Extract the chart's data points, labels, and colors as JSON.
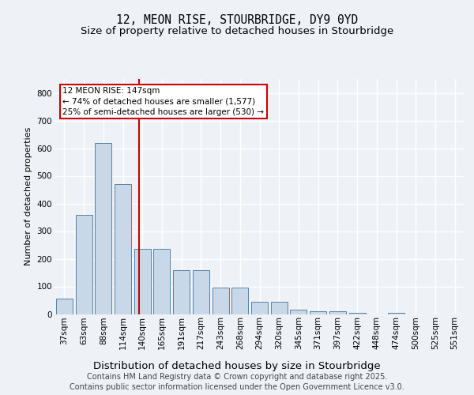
{
  "title": "12, MEON RISE, STOURBRIDGE, DY9 0YD",
  "subtitle": "Size of property relative to detached houses in Stourbridge",
  "xlabel": "Distribution of detached houses by size in Stourbridge",
  "ylabel": "Number of detached properties",
  "categories": [
    "37sqm",
    "63sqm",
    "88sqm",
    "114sqm",
    "140sqm",
    "165sqm",
    "191sqm",
    "217sqm",
    "243sqm",
    "268sqm",
    "294sqm",
    "320sqm",
    "345sqm",
    "371sqm",
    "397sqm",
    "422sqm",
    "448sqm",
    "474sqm",
    "500sqm",
    "525sqm",
    "551sqm"
  ],
  "values": [
    55,
    360,
    620,
    470,
    235,
    235,
    160,
    160,
    95,
    95,
    45,
    45,
    15,
    10,
    10,
    5,
    0,
    5,
    0,
    0,
    0
  ],
  "bar_color": "#c8d8e8",
  "bar_edge_color": "#5580a8",
  "vline_color": "#cc0000",
  "vline_pos": 3.813,
  "annotation_title": "12 MEON RISE: 147sqm",
  "annotation_line1": "← 74% of detached houses are smaller (1,577)",
  "annotation_line2": "25% of semi-detached houses are larger (530) →",
  "annotation_box_color": "#cc0000",
  "annotation_bg": "#ffffff",
  "ylim": [
    0,
    850
  ],
  "yticks": [
    0,
    100,
    200,
    300,
    400,
    500,
    600,
    700,
    800
  ],
  "footer_line1": "Contains HM Land Registry data © Crown copyright and database right 2025.",
  "footer_line2": "Contains public sector information licensed under the Open Government Licence v3.0.",
  "bg_color": "#eef2f7",
  "plot_bg_color": "#eef2f7",
  "grid_color": "#ffffff",
  "title_fontsize": 10.5,
  "subtitle_fontsize": 9.5,
  "footer_fontsize": 7,
  "ylabel_fontsize": 8,
  "tick_fontsize": 7.5,
  "ann_fontsize": 7.5
}
